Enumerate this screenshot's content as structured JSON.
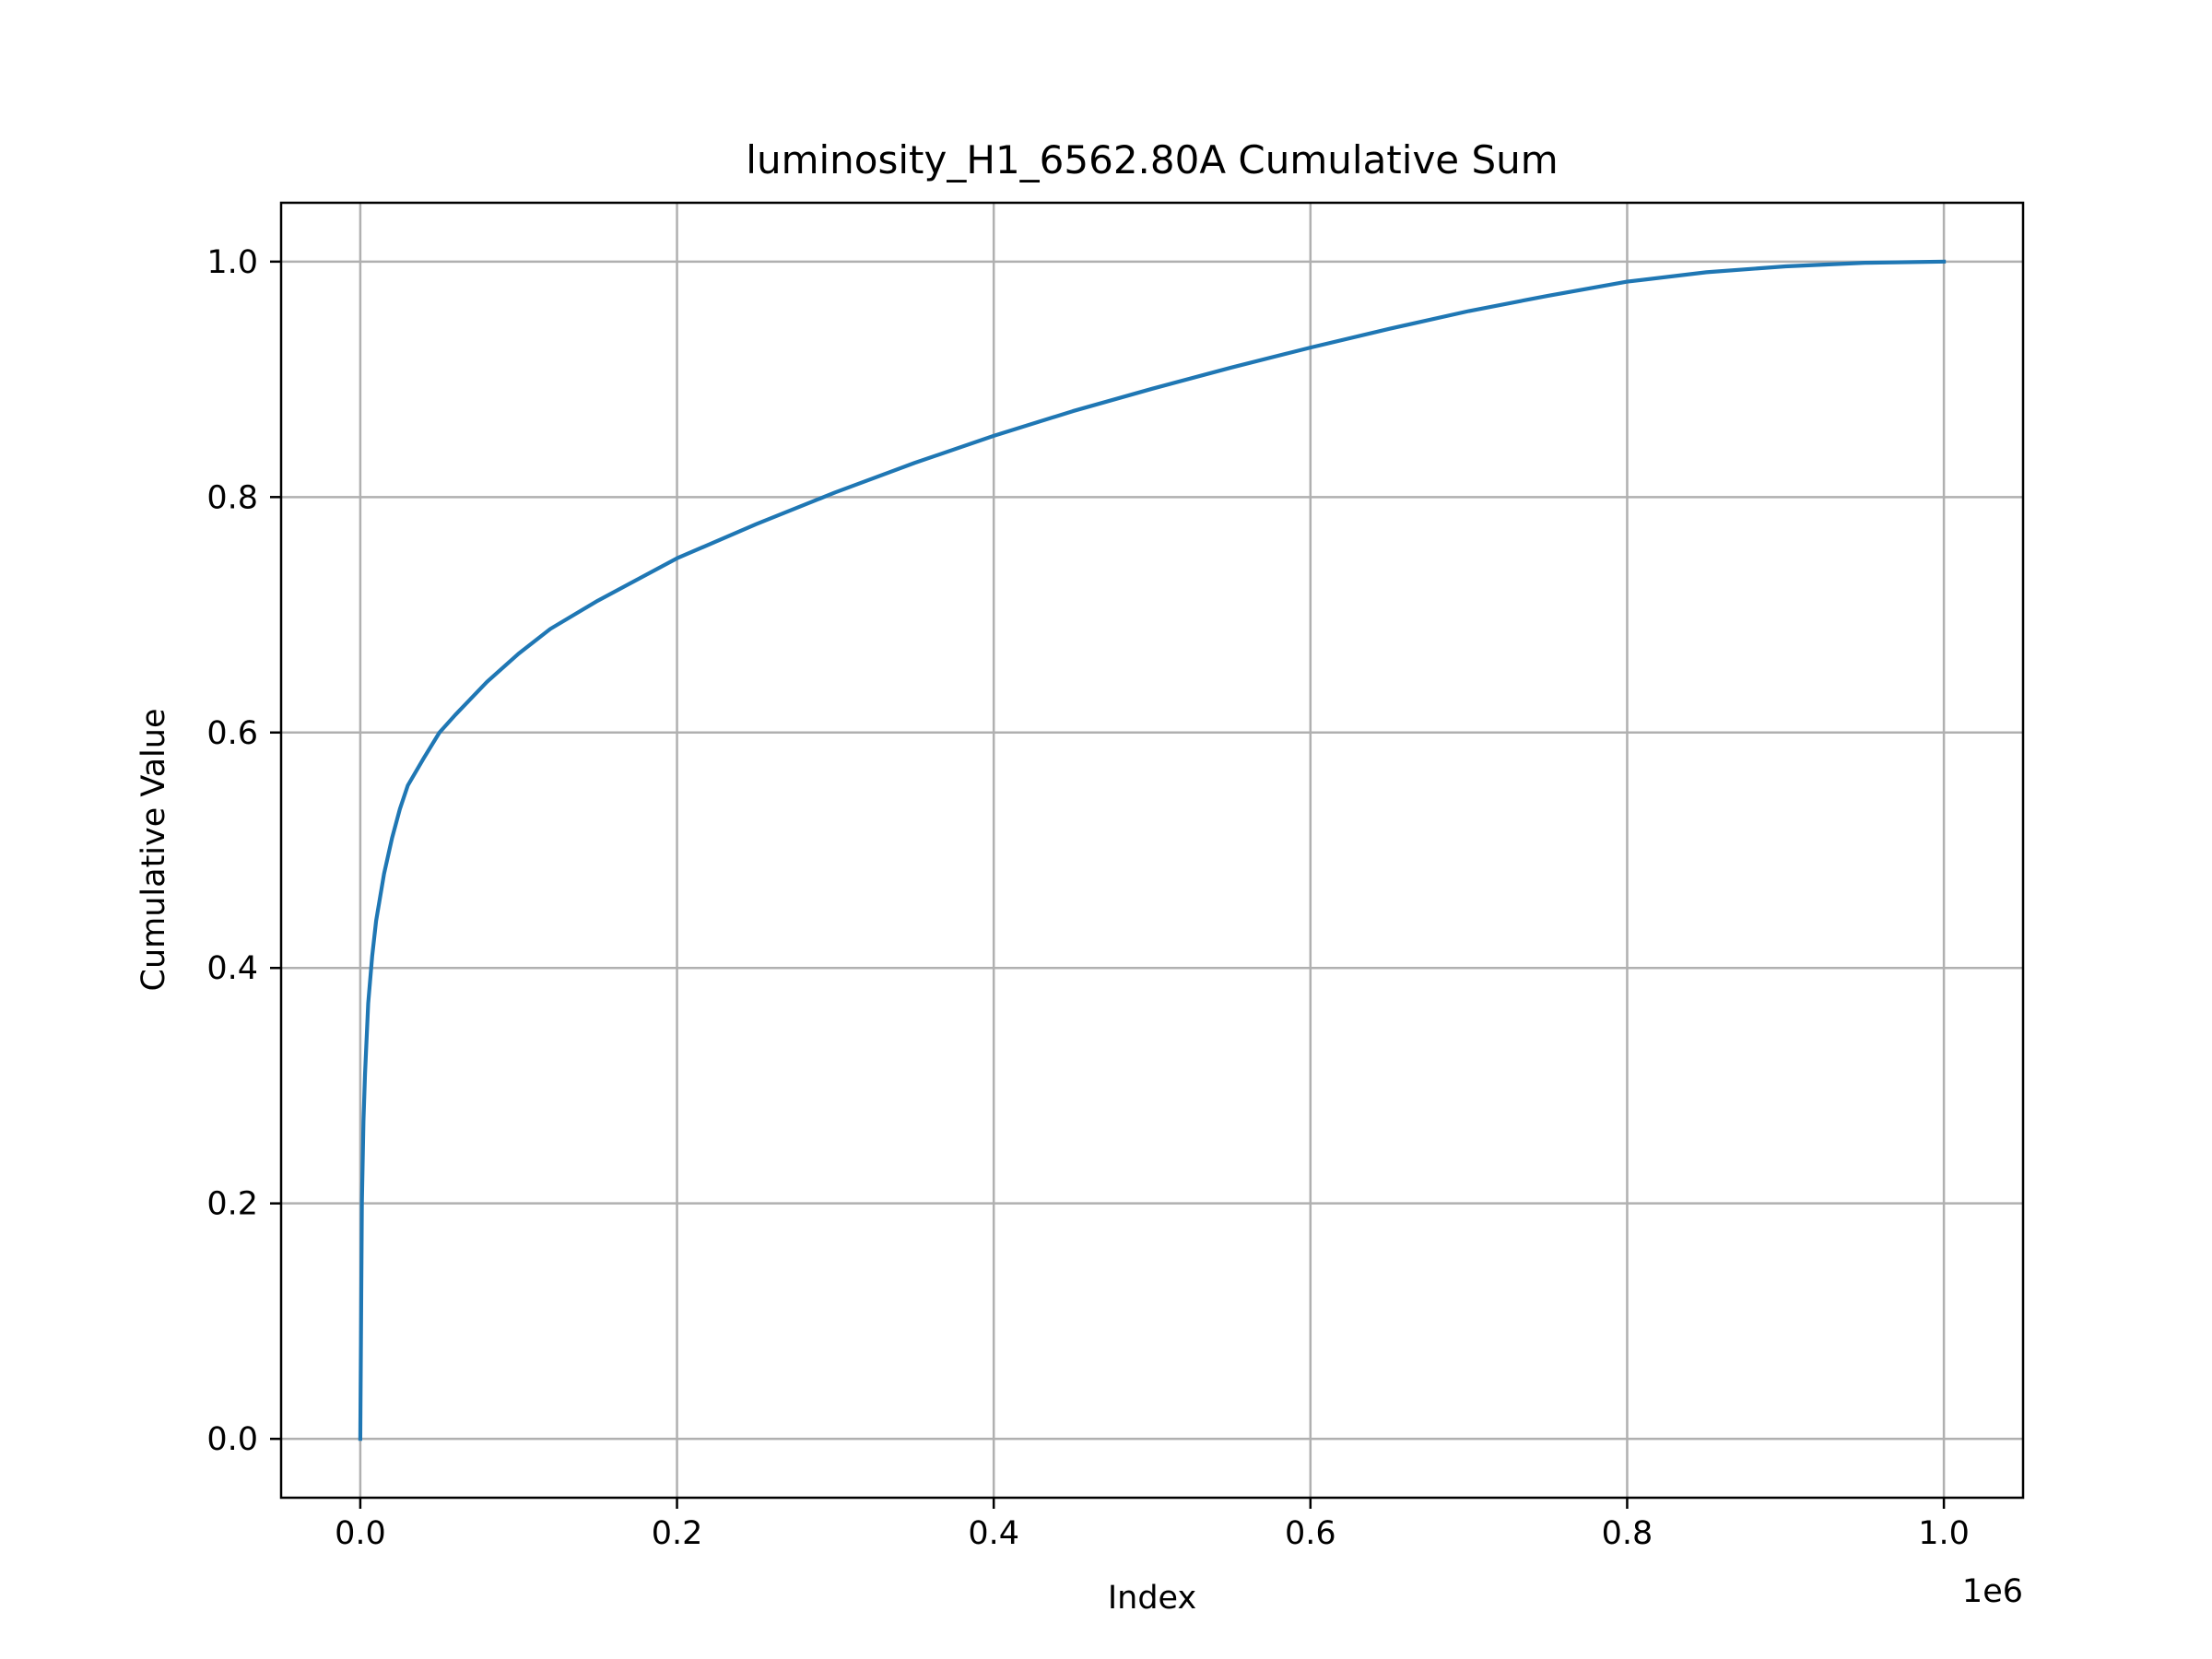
{
  "chart_data": {
    "type": "line",
    "title": "luminosity_H1_6562.80A Cumulative Sum",
    "xlabel": "Index",
    "ylabel": "Cumulative Value",
    "x_offset_label": "1e6",
    "xlim": [
      -50000,
      1050000
    ],
    "ylim": [
      -0.05,
      1.05
    ],
    "x_ticks": [
      0,
      200000,
      400000,
      600000,
      800000,
      1000000
    ],
    "x_tick_labels": [
      "0.0",
      "0.2",
      "0.4",
      "0.6",
      "0.8",
      "1.0"
    ],
    "y_ticks": [
      0.0,
      0.2,
      0.4,
      0.6,
      0.8,
      1.0
    ],
    "y_tick_labels": [
      "0.0",
      "0.2",
      "0.4",
      "0.6",
      "0.8",
      "1.0"
    ],
    "grid": true,
    "series": [
      {
        "color": "#1f77b4",
        "x": [
          0,
          1000,
          2000,
          3000,
          5000,
          7500,
          10000,
          15000,
          20000,
          25000,
          30000,
          40000,
          50000,
          60000,
          80000,
          100000,
          120000,
          150000,
          200000,
          250000,
          300000,
          350000,
          400000,
          450000,
          500000,
          550000,
          600000,
          650000,
          700000,
          750000,
          800000,
          850000,
          900000,
          950000,
          1000000
        ],
        "y": [
          0.0,
          0.2,
          0.27,
          0.31,
          0.37,
          0.41,
          0.44,
          0.48,
          0.51,
          0.535,
          0.555,
          0.578,
          0.6,
          0.615,
          0.643,
          0.667,
          0.688,
          0.712,
          0.748,
          0.777,
          0.804,
          0.829,
          0.852,
          0.873,
          0.892,
          0.91,
          0.927,
          0.943,
          0.958,
          0.971,
          0.983,
          0.991,
          0.996,
          0.999,
          1.0
        ]
      }
    ]
  }
}
